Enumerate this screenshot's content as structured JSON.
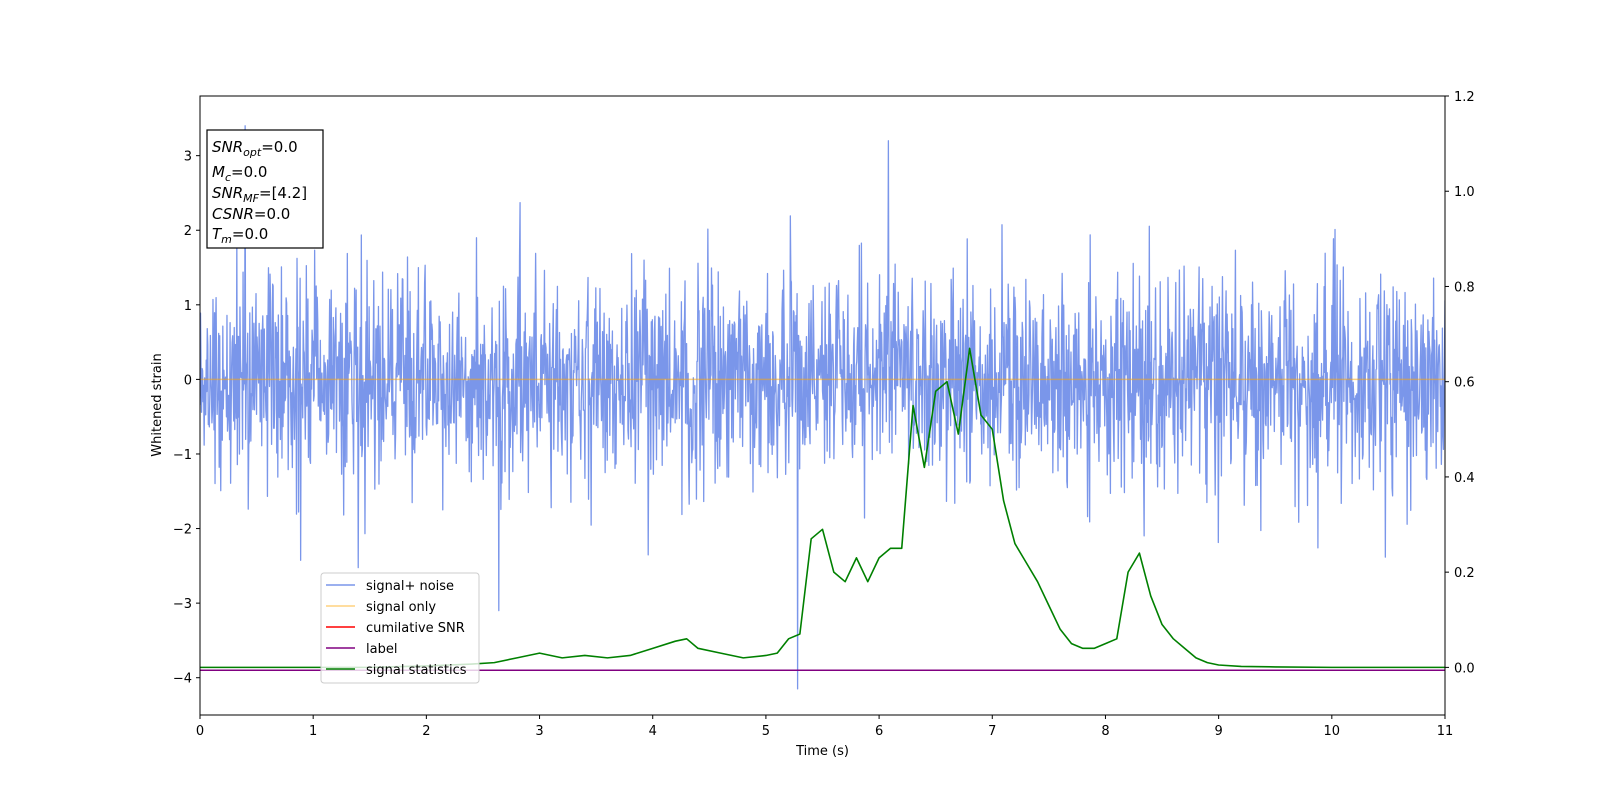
{
  "chart_data": {
    "type": "line",
    "xlabel": "Time (s)",
    "ylabel": "Whitened strain",
    "xlim": [
      0,
      11
    ],
    "ylim": [
      -4.5,
      3.8
    ],
    "y2lim": [
      -0.1,
      1.2
    ],
    "x_ticks": [
      "0",
      "1",
      "2",
      "3",
      "4",
      "5",
      "6",
      "7",
      "8",
      "9",
      "10",
      "11"
    ],
    "y_ticks": [
      "3",
      "2",
      "1",
      "0",
      "−1",
      "−2",
      "−3",
      "−4"
    ],
    "y2_ticks": [
      "1.2",
      "1.0",
      "0.8",
      "0.6",
      "0.4",
      "0.2",
      "0.0"
    ],
    "grid": false,
    "legend_position": "lower-left",
    "annotation": {
      "snr_opt": {
        "name": "SNR",
        "sub": "opt",
        "value": "=0.0"
      },
      "mc": {
        "name": "M",
        "sub": "c",
        "value": "=0.0"
      },
      "snr_mf": {
        "name": "SNR",
        "sub": "MF",
        "value": "=[4.2]"
      },
      "csnr": {
        "name": "CSNR",
        "sub": "",
        "value": "=0.0"
      },
      "tm": {
        "name": "T",
        "sub": "m",
        "value": "=0.0"
      }
    },
    "series": [
      {
        "name": "signal+ noise",
        "color": "#4169e1",
        "axis": "left",
        "noise_std": 0.7,
        "duration": 11,
        "samples": 2400,
        "notable_values": [
          [
            0.4,
            3.4
          ],
          [
            5.28,
            -4.15
          ],
          [
            6.08,
            3.2
          ],
          [
            2.64,
            -3.1
          ]
        ]
      },
      {
        "name": "signal only",
        "color": "#ffa500",
        "axis": "left",
        "x": [
          0,
          11
        ],
        "y": [
          0,
          0
        ]
      },
      {
        "name": "cumilative SNR",
        "color": "#ff0000",
        "axis": "left",
        "x": [],
        "y": []
      },
      {
        "name": "label",
        "color": "#800080",
        "axis": "left",
        "x": [
          0,
          11
        ],
        "y": [
          -3.9,
          -3.9
        ]
      },
      {
        "name": "signal statistics",
        "color": "#008000",
        "axis": "right",
        "x": [
          0,
          0.5,
          1,
          1.5,
          2,
          2.2,
          2.4,
          2.6,
          2.8,
          3,
          3.2,
          3.4,
          3.6,
          3.8,
          4,
          4.2,
          4.3,
          4.4,
          4.6,
          4.8,
          5,
          5.1,
          5.2,
          5.3,
          5.4,
          5.5,
          5.6,
          5.7,
          5.8,
          5.9,
          6.0,
          6.1,
          6.2,
          6.3,
          6.4,
          6.5,
          6.6,
          6.7,
          6.8,
          6.9,
          7.0,
          7.1,
          7.2,
          7.3,
          7.4,
          7.5,
          7.6,
          7.7,
          7.8,
          7.9,
          8.0,
          8.1,
          8.2,
          8.3,
          8.4,
          8.5,
          8.6,
          8.7,
          8.8,
          8.9,
          9.0,
          9.2,
          9.5,
          10,
          10.5,
          11
        ],
        "y": [
          0.0,
          0.0,
          0.0,
          0.0,
          0.003,
          0.005,
          0.007,
          0.01,
          0.02,
          0.03,
          0.02,
          0.025,
          0.02,
          0.025,
          0.04,
          0.055,
          0.06,
          0.04,
          0.03,
          0.02,
          0.025,
          0.03,
          0.06,
          0.07,
          0.27,
          0.29,
          0.2,
          0.18,
          0.23,
          0.18,
          0.23,
          0.25,
          0.25,
          0.55,
          0.42,
          0.58,
          0.6,
          0.49,
          0.67,
          0.53,
          0.5,
          0.35,
          0.26,
          0.22,
          0.18,
          0.13,
          0.08,
          0.05,
          0.04,
          0.04,
          0.05,
          0.06,
          0.2,
          0.24,
          0.15,
          0.09,
          0.06,
          0.04,
          0.02,
          0.01,
          0.005,
          0.002,
          0.001,
          0.0,
          0.0,
          0.0
        ]
      }
    ]
  }
}
